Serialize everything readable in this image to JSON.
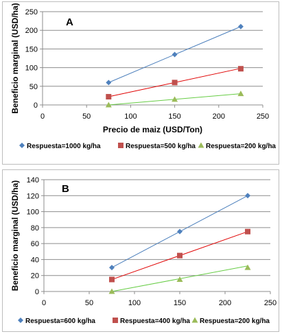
{
  "chart_data": [
    {
      "type": "line",
      "panel_label": "A",
      "title": "",
      "xlabel": "Precio de maiz (USD/Ton)",
      "ylabel": "Beneficio marginal (USD/ha)",
      "xlim": [
        0,
        250
      ],
      "ylim": [
        0,
        250
      ],
      "x_ticks": [
        0,
        50,
        100,
        150,
        200,
        250
      ],
      "y_ticks": [
        0,
        50,
        100,
        150,
        200,
        250
      ],
      "x_tick_labels": [
        "0",
        "50",
        "100",
        "150",
        "200",
        "250"
      ],
      "y_tick_labels": [
        "0",
        "50",
        "100",
        "150",
        "200",
        "250"
      ],
      "grid": "horizontal",
      "legend_position": "bottom",
      "series": [
        {
          "name": "Respuesta=1000 kg/ha",
          "marker": "diamond",
          "color": "#4f81bd",
          "line_color": "#4a7ebb",
          "x": [
            75,
            150,
            225
          ],
          "values": [
            60,
            135,
            210
          ],
          "fit": [
            60,
            210
          ]
        },
        {
          "name": "Respuesta=500 kg/ha",
          "marker": "square",
          "color": "#c0504d",
          "line_color": "#e00000",
          "x": [
            75,
            150,
            225
          ],
          "values": [
            22,
            60,
            97
          ],
          "fit": [
            22,
            98
          ]
        },
        {
          "name": "Respuesta=200 kg/ha",
          "marker": "triangle",
          "color": "#9bbb59",
          "line_color": "#66cc44",
          "x": [
            75,
            150,
            225
          ],
          "values": [
            0,
            15,
            30
          ],
          "fit": [
            0,
            30
          ]
        }
      ]
    },
    {
      "type": "line",
      "panel_label": "B",
      "title": "",
      "xlabel": "",
      "ylabel": "Beneficio marginal (USD/ha)",
      "xlim": [
        0,
        250
      ],
      "ylim": [
        0,
        140
      ],
      "x_ticks": [
        0,
        50,
        100,
        150,
        200,
        250
      ],
      "y_ticks": [
        0,
        20,
        40,
        60,
        80,
        100,
        120,
        140
      ],
      "x_tick_labels": [
        "0",
        "50",
        "100",
        "150",
        "200",
        "250"
      ],
      "y_tick_labels": [
        "0",
        "20",
        "40",
        "60",
        "80",
        "100",
        "120",
        "140"
      ],
      "grid": "horizontal",
      "legend_position": "bottom",
      "series": [
        {
          "name": "Respuesta=600 kg/ha",
          "marker": "diamond",
          "color": "#4f81bd",
          "line_color": "#4a7ebb",
          "x": [
            75,
            150,
            225
          ],
          "values": [
            30,
            75,
            120
          ],
          "fit": [
            30,
            120
          ]
        },
        {
          "name": "Respuesta=400 kg/ha",
          "marker": "square",
          "color": "#c0504d",
          "line_color": "#e00000",
          "x": [
            75,
            150,
            225
          ],
          "values": [
            15,
            45,
            75
          ],
          "fit": [
            15,
            75
          ]
        },
        {
          "name": "Respuesta=200 kg/ha",
          "marker": "triangle",
          "color": "#9bbb59",
          "line_color": "#66cc44",
          "x": [
            75,
            150,
            225
          ],
          "values": [
            0,
            15,
            30
          ],
          "fit": [
            0,
            32
          ]
        }
      ]
    }
  ]
}
